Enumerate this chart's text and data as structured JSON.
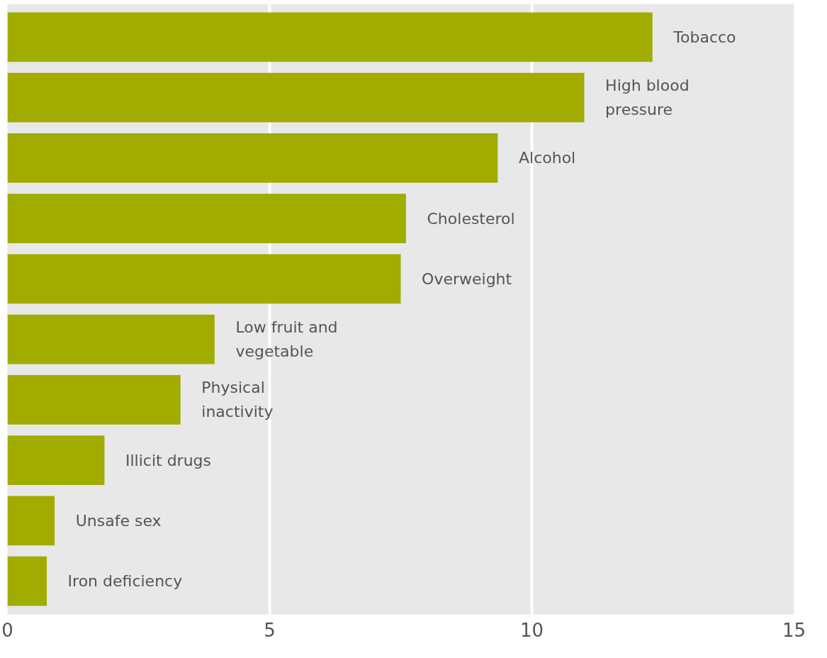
{
  "chart_data": {
    "type": "bar",
    "orientation": "horizontal",
    "categories": [
      "Tobacco",
      "High blood pressure",
      "Alcohol",
      "Cholesterol",
      "Overweight",
      "Low fruit and vegetable",
      "Physical inactivity",
      "Illicit drugs",
      "Unsafe sex",
      "Iron deficiency"
    ],
    "values": [
      12.3,
      11.0,
      9.35,
      7.6,
      7.5,
      3.95,
      3.3,
      1.85,
      0.9,
      0.75
    ],
    "color": "#a0ac00",
    "xlim": [
      0,
      15
    ],
    "xticks": [
      0,
      5,
      10,
      15
    ],
    "grid": "x",
    "tick_labels": "x"
  }
}
